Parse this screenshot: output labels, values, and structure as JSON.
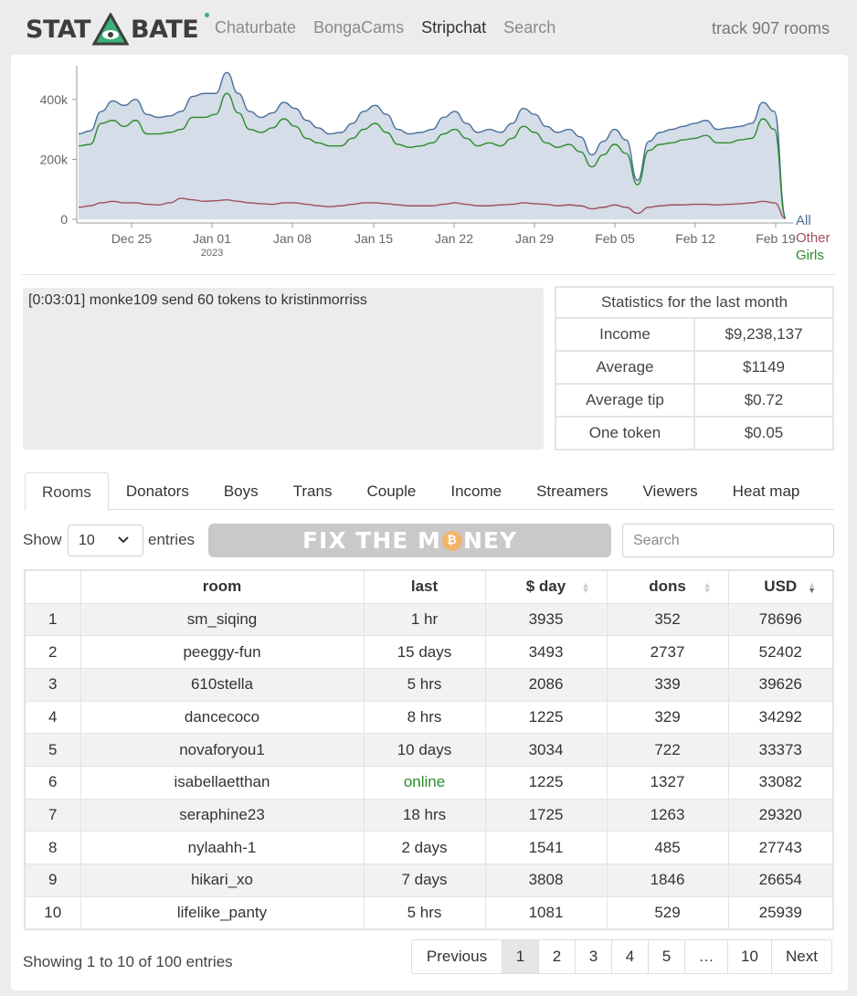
{
  "header": {
    "logo_left": "STAT",
    "logo_right": "BATE",
    "nav": [
      "Chaturbate",
      "BongaCams",
      "Stripchat",
      "Search"
    ],
    "active_nav": "Stripchat",
    "track": "track 907 rooms"
  },
  "colors": {
    "all": "#4a6f9a",
    "other": "#a0505a",
    "girls": "#2e8b2e",
    "area": "#d4dde8",
    "accent": "#3ab07a"
  },
  "chart_data": {
    "type": "area",
    "x_ticks": [
      "Dec 25",
      "Jan 01",
      "Jan 08",
      "Jan 15",
      "Jan 22",
      "Jan 29",
      "Feb 05",
      "Feb 12",
      "Feb 19"
    ],
    "x_year_label": "2023",
    "y_ticks": [
      "0",
      "200k",
      "400k"
    ],
    "ylim": [
      0,
      500000
    ],
    "legend": [
      "All",
      "Other",
      "Girls"
    ],
    "series": [
      {
        "name": "All",
        "values": [
          285000,
          295000,
          360000,
          395000,
          380000,
          400000,
          350000,
          340000,
          345000,
          360000,
          410000,
          420000,
          420000,
          490000,
          420000,
          360000,
          340000,
          355000,
          390000,
          370000,
          330000,
          305000,
          285000,
          290000,
          320000,
          360000,
          380000,
          350000,
          300000,
          285000,
          290000,
          300000,
          340000,
          360000,
          320000,
          290000,
          300000,
          290000,
          320000,
          370000,
          350000,
          310000,
          290000,
          300000,
          275000,
          215000,
          260000,
          300000,
          265000,
          130000,
          260000,
          290000,
          300000,
          310000,
          320000,
          330000,
          300000,
          305000,
          310000,
          320000,
          390000,
          360000,
          5000
        ]
      },
      {
        "name": "Girls",
        "values": [
          245000,
          250000,
          320000,
          330000,
          310000,
          330000,
          285000,
          285000,
          290000,
          300000,
          340000,
          340000,
          350000,
          420000,
          355000,
          300000,
          290000,
          305000,
          335000,
          310000,
          270000,
          255000,
          245000,
          245000,
          270000,
          300000,
          320000,
          290000,
          250000,
          240000,
          245000,
          255000,
          285000,
          300000,
          270000,
          245000,
          255000,
          245000,
          270000,
          310000,
          290000,
          255000,
          240000,
          250000,
          225000,
          175000,
          215000,
          250000,
          220000,
          115000,
          230000,
          250000,
          255000,
          265000,
          270000,
          280000,
          255000,
          255000,
          265000,
          270000,
          335000,
          300000,
          5000
        ]
      },
      {
        "name": "Other",
        "values": [
          40000,
          45000,
          55000,
          60000,
          55000,
          55000,
          50000,
          48000,
          55000,
          70000,
          65000,
          60000,
          62000,
          65000,
          60000,
          55000,
          52000,
          50000,
          55000,
          55000,
          50000,
          45000,
          42000,
          45000,
          50000,
          55000,
          55000,
          52000,
          48000,
          45000,
          45000,
          45000,
          50000,
          55000,
          50000,
          45000,
          45000,
          48000,
          50000,
          55000,
          52000,
          50000,
          45000,
          48000,
          45000,
          35000,
          40000,
          48000,
          40000,
          20000,
          40000,
          45000,
          48000,
          48000,
          50000,
          50000,
          48000,
          50000,
          52000,
          55000,
          60000,
          55000,
          3000
        ]
      }
    ]
  },
  "log": {
    "time": "[0:03:01]",
    "from": "monke109",
    "action": "send 60 tokens to",
    "to": "kristinmorriss"
  },
  "stats": {
    "title": "Statistics for the last month",
    "rows": [
      {
        "label": "Income",
        "value": "$9,238,137"
      },
      {
        "label": "Average",
        "value": "$1149"
      },
      {
        "label": "Average tip",
        "value": "$0.72"
      },
      {
        "label": "One token",
        "value": "$0.05"
      }
    ]
  },
  "tabs": [
    "Rooms",
    "Donators",
    "Boys",
    "Trans",
    "Couple",
    "Income",
    "Streamers",
    "Viewers",
    "Heat map"
  ],
  "controls": {
    "show": "Show",
    "entries_value": "10",
    "entries": "entries",
    "banner_left": "FIX THE M",
    "banner_right": "NEY",
    "search_placeholder": "Search"
  },
  "table": {
    "columns": [
      "",
      "room",
      "last",
      "$ day",
      "dons",
      "USD"
    ],
    "rows": [
      [
        "1",
        "sm_siqing",
        "1 hr",
        "3935",
        "352",
        "78696"
      ],
      [
        "2",
        "peeggy-fun",
        "15 days",
        "3493",
        "2737",
        "52402"
      ],
      [
        "3",
        "610stella",
        "5 hrs",
        "2086",
        "339",
        "39626"
      ],
      [
        "4",
        "dancecoco",
        "8 hrs",
        "1225",
        "329",
        "34292"
      ],
      [
        "5",
        "novaforyou1",
        "10 days",
        "3034",
        "722",
        "33373"
      ],
      [
        "6",
        "isabellaetthan",
        "online",
        "1225",
        "1327",
        "33082"
      ],
      [
        "7",
        "seraphine23",
        "18 hrs",
        "1725",
        "1263",
        "29320"
      ],
      [
        "8",
        "nylaahh-1",
        "2 days",
        "1541",
        "485",
        "27743"
      ],
      [
        "9",
        "hikari_xo",
        "7 days",
        "3808",
        "1846",
        "26654"
      ],
      [
        "10",
        "lifelike_panty",
        "5 hrs",
        "1081",
        "529",
        "25939"
      ]
    ]
  },
  "footer": {
    "info": "Showing 1 to 10 of 100 entries",
    "pager": [
      "Previous",
      "1",
      "2",
      "3",
      "4",
      "5",
      "…",
      "10",
      "Next"
    ]
  }
}
